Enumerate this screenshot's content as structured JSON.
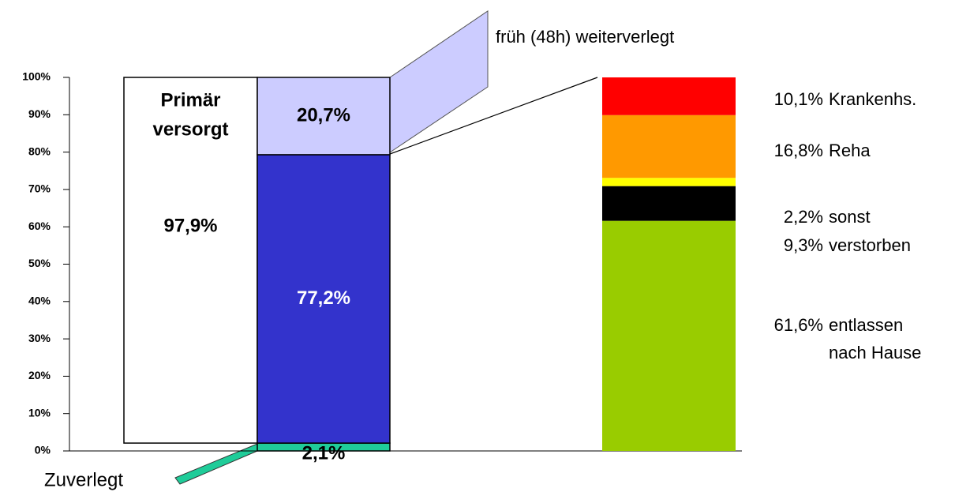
{
  "chart_data": {
    "type": "stacked_bar",
    "ylim": [
      0,
      100
    ],
    "yticks": [
      {
        "value": 0,
        "label": "0%"
      },
      {
        "value": 10,
        "label": "10%"
      },
      {
        "value": 20,
        "label": "20%"
      },
      {
        "value": 30,
        "label": "30%"
      },
      {
        "value": 40,
        "label": "40%"
      },
      {
        "value": 50,
        "label": "50%"
      },
      {
        "value": 60,
        "label": "60%"
      },
      {
        "value": 70,
        "label": "70%"
      },
      {
        "value": 80,
        "label": "80%"
      },
      {
        "value": 90,
        "label": "90%"
      },
      {
        "value": 100,
        "label": "100%"
      }
    ],
    "columns": [
      {
        "title": [
          "Primär",
          "versorgt"
        ],
        "segments": [
          {
            "value": 97.9,
            "value_label": "97,9%",
            "color": "#ffffff"
          }
        ]
      },
      {
        "segments": [
          {
            "value": 2.1,
            "value_label": "2,1%",
            "color": "#1fcc99",
            "name": "Zuverlegt"
          },
          {
            "value": 77.2,
            "value_label": "77,2%",
            "color": "#3333cc"
          },
          {
            "value": 20.7,
            "value_label": "20,7%",
            "color": "#ccccff",
            "name": "früh (48h) weiterverlegt"
          }
        ]
      },
      {
        "segments": [
          {
            "value": 61.6,
            "value_label": "61,6%",
            "color": "#99cc00",
            "name": [
              "entlassen",
              "nach Hause"
            ]
          },
          {
            "value": 9.3,
            "value_label": "9,3%",
            "color": "#000000",
            "name": "verstorben"
          },
          {
            "value": 2.2,
            "value_label": "2,2%",
            "color": "#ffff00",
            "name": "sonst"
          },
          {
            "value": 16.8,
            "value_label": "16,8%",
            "color": "#ff9900",
            "name": "Reha"
          },
          {
            "value": 10.1,
            "value_label": "10,1%",
            "color": "#ff0000",
            "name": "Krankenhs."
          }
        ]
      }
    ]
  }
}
